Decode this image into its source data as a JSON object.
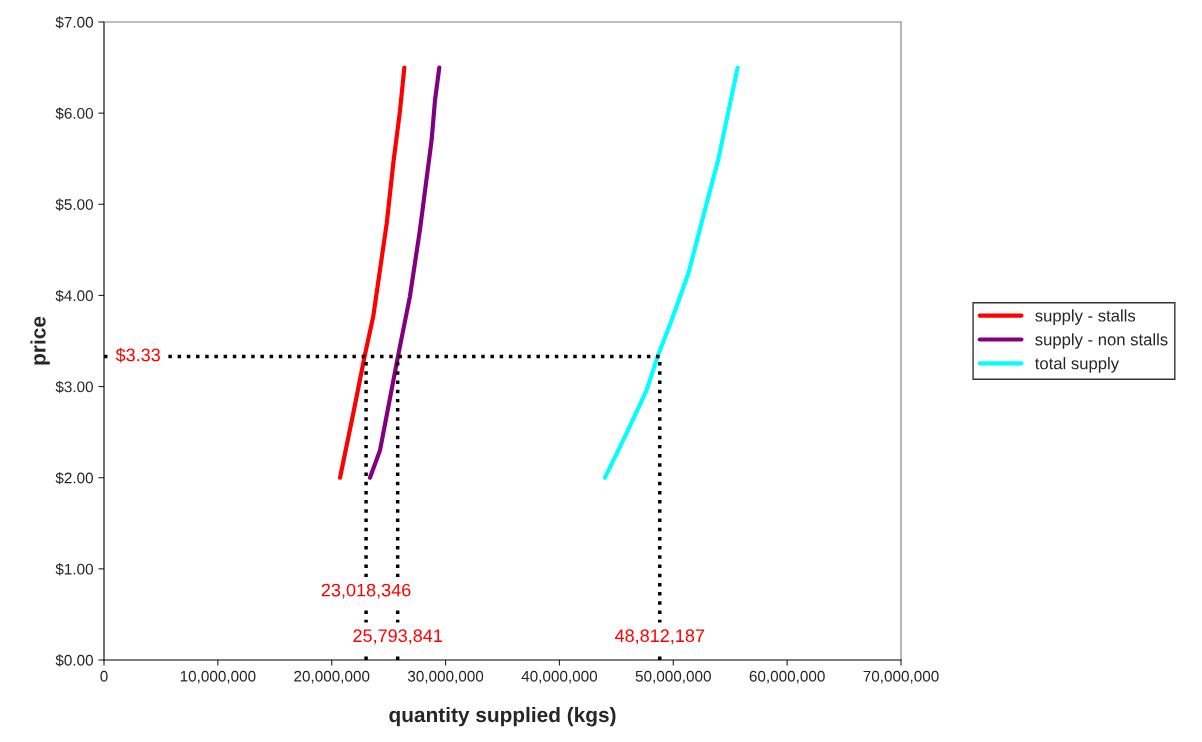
{
  "chart_data": {
    "type": "line",
    "xlabel": "quantity supplied (kgs)",
    "ylabel": "price",
    "series": [
      {
        "name": "supply - stalls",
        "color": "#ff0000",
        "x": [
          20730000,
          21900000,
          22920000,
          23650000,
          24830000,
          25410000,
          26000000,
          26380000
        ],
        "values": [
          2.0,
          2.71,
          3.35,
          3.77,
          4.79,
          5.45,
          6.03,
          6.5
        ]
      },
      {
        "name": "supply - non stalls",
        "color": "#800080",
        "x": [
          23360000,
          24240000,
          25850000,
          26870000,
          27750000,
          28780000,
          29070000,
          29450000
        ],
        "values": [
          2.0,
          2.3,
          3.35,
          3.99,
          4.72,
          5.71,
          6.14,
          6.5
        ]
      },
      {
        "name": "total supply",
        "color": "#00ffff",
        "x": [
          44000000,
          45900000,
          47660000,
          48680000,
          49860000,
          51320000,
          52930000,
          53950000,
          55650000
        ],
        "values": [
          2.0,
          2.49,
          2.96,
          3.35,
          3.73,
          4.24,
          5.01,
          5.49,
          6.5
        ]
      }
    ],
    "ref_lines": [
      {
        "axis": "y",
        "value": 3.33,
        "color": "#000000",
        "line_style": "dotted"
      },
      {
        "axis": "x",
        "value": 23018346,
        "color": "#000000",
        "line_style": "dotted"
      },
      {
        "axis": "x",
        "value": 25793841,
        "color": "#000000",
        "line_style": "dotted"
      },
      {
        "axis": "x",
        "value": 48812187,
        "color": "#000000",
        "line_style": "dotted"
      }
    ],
    "annotations": [
      {
        "text": "$3.33",
        "x": 3000000,
        "y": 3.33
      },
      {
        "text": "23,018,346",
        "x": 23018346,
        "y": 0.75
      },
      {
        "text": "25,793,841",
        "x": 25793841,
        "y": 0.25
      },
      {
        "text": "48,812,187",
        "x": 48812187,
        "y": 0.25
      }
    ],
    "xlim": [
      0,
      70000000
    ],
    "xticks": [
      0,
      {
        "value": 10000000,
        "label": "10,000,000"
      },
      {
        "value": 20000000,
        "label": "20,000,000"
      },
      {
        "value": 30000000,
        "label": "30,000,000"
      },
      {
        "value": 40000000,
        "label": "40,000,000"
      },
      {
        "value": 50000000,
        "label": "50,000,000"
      },
      {
        "value": 60000000,
        "label": "60,000,000"
      },
      {
        "value": 70000000,
        "label": "70,000,000"
      }
    ],
    "ylim": [
      0,
      7
    ],
    "yticks": [
      {
        "value": 0,
        "label": "$0.00"
      },
      {
        "value": 1,
        "label": "$1.00"
      },
      {
        "value": 2,
        "label": "$2.00"
      },
      {
        "value": 3,
        "label": "$3.00"
      },
      {
        "value": 4,
        "label": "$4.00"
      },
      {
        "value": 5,
        "label": "$5.00"
      },
      {
        "value": 6,
        "label": "$6.00"
      },
      {
        "value": 7,
        "label": "$7.00"
      }
    ],
    "grid": false,
    "legend": "right",
    "marker": "none",
    "line_style": "solid"
  }
}
